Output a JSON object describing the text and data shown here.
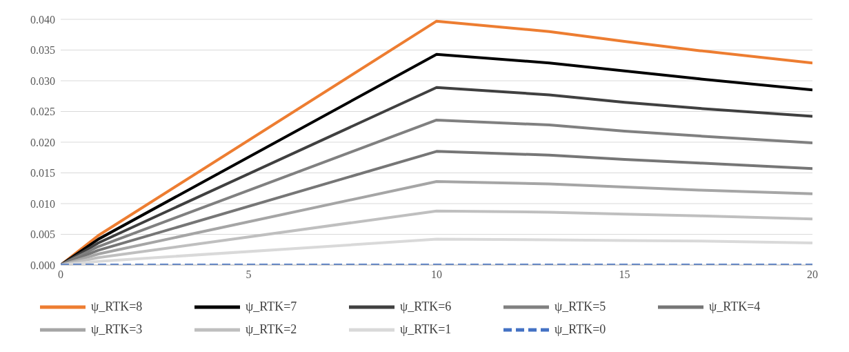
{
  "chart_data": {
    "type": "line",
    "x": [
      0,
      1,
      10,
      13,
      15,
      17,
      20
    ],
    "xlim": [
      0,
      20
    ],
    "xticks": [
      0,
      5,
      10,
      15,
      20
    ],
    "ylim": [
      0,
      0.04
    ],
    "yticks": [
      {
        "value": 0,
        "label": "0.000"
      },
      {
        "value": 0.005,
        "label": "0.005"
      },
      {
        "value": 0.01,
        "label": "0.010"
      },
      {
        "value": 0.015,
        "label": "0.015"
      },
      {
        "value": 0.02,
        "label": "0.020"
      },
      {
        "value": 0.025,
        "label": "0.025"
      },
      {
        "value": 0.03,
        "label": "0.030"
      },
      {
        "value": 0.035,
        "label": "0.035"
      },
      {
        "value": 0.04,
        "label": "0.040"
      }
    ],
    "grid": "y",
    "legend": "bottom",
    "marker": "none",
    "series": [
      {
        "name": "ψ_RTK=8",
        "color": "#ed7d31",
        "values": [
          0,
          0.0048,
          0.0397,
          0.038,
          0.0364,
          0.0349,
          0.0329
        ]
      },
      {
        "name": "ψ_RTK=7",
        "color": "#000000",
        "values": [
          0,
          0.0042,
          0.0343,
          0.0329,
          0.0316,
          0.0303,
          0.0285
        ]
      },
      {
        "name": "ψ_RTK=6",
        "color": "#404040",
        "values": [
          0,
          0.0036,
          0.0289,
          0.0277,
          0.0265,
          0.0255,
          0.0242
        ]
      },
      {
        "name": "ψ_RTK=5",
        "color": "#808080",
        "values": [
          0,
          0.003,
          0.0236,
          0.0228,
          0.0218,
          0.021,
          0.0199
        ]
      },
      {
        "name": "ψ_RTK=4",
        "color": "#767676",
        "values": [
          0,
          0.0024,
          0.0185,
          0.0179,
          0.0172,
          0.0166,
          0.0157
        ]
      },
      {
        "name": "ψ_RTK=3",
        "color": "#a5a5a5",
        "values": [
          0,
          0.0018,
          0.0136,
          0.0132,
          0.0127,
          0.0122,
          0.0116
        ]
      },
      {
        "name": "ψ_RTK=2",
        "color": "#bfbfbf",
        "values": [
          0,
          0.0012,
          0.0088,
          0.0086,
          0.0083,
          0.008,
          0.0075
        ]
      },
      {
        "name": "ψ_RTK=1",
        "color": "#d9d9d9",
        "values": [
          0,
          0.0006,
          0.0042,
          0.0041,
          0.004,
          0.0039,
          0.0036
        ]
      },
      {
        "name": "ψ_RTK=0",
        "color": "#4472c4",
        "line_style": "dashed",
        "values": [
          0,
          0,
          0,
          0,
          0,
          0,
          0
        ]
      }
    ]
  }
}
